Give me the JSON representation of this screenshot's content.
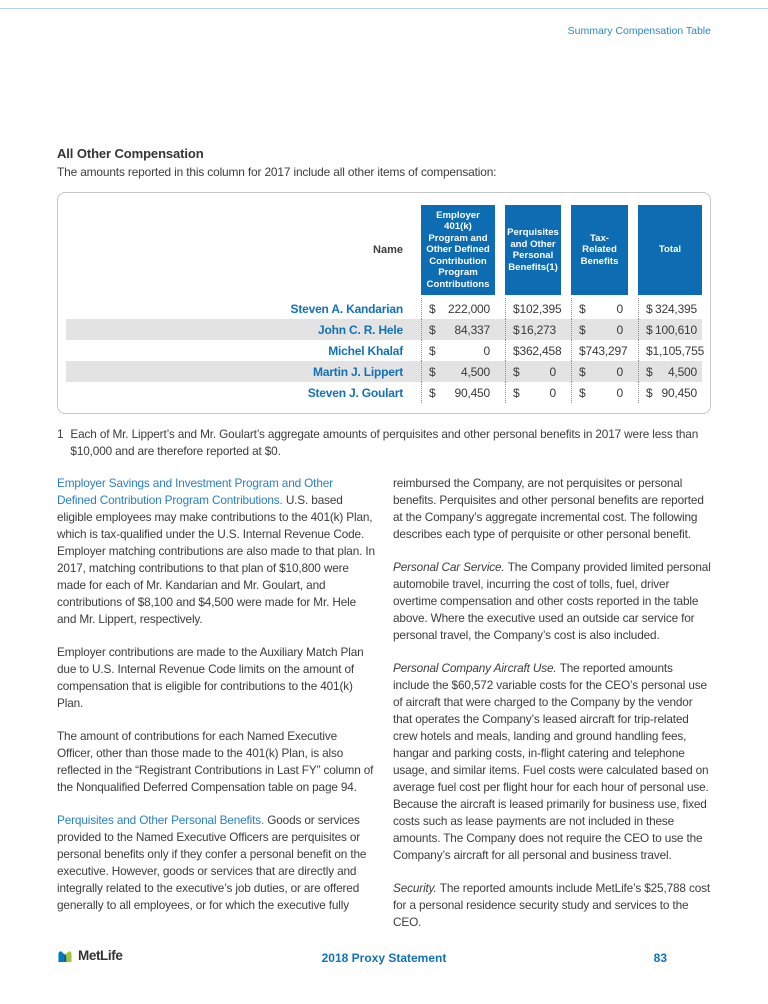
{
  "page": {
    "header_label": "Summary Compensation Table",
    "section_title": "All Other Compensation",
    "intro": "The amounts reported in this column for 2017 include all other items of compensation:"
  },
  "table": {
    "name_header": "Name",
    "columns": [
      "Employer 401(k) Program and Other Defined Contribution Program Contributions",
      "Perquisites and Other Personal Benefits(1)",
      "Tax-Related Benefits",
      "Total"
    ],
    "currency_symbol": "$",
    "rows": [
      {
        "name": "Steven A. Kandarian",
        "values": [
          "222,000",
          "102,395",
          "0",
          "324,395"
        ]
      },
      {
        "name": "John C. R. Hele",
        "values": [
          "84,337",
          "16,273",
          "0",
          "100,610"
        ]
      },
      {
        "name": "Michel Khalaf",
        "values": [
          "0",
          "362,458",
          "743,297",
          "1,105,755"
        ]
      },
      {
        "name": "Martin J. Lippert",
        "values": [
          "4,500",
          "0",
          "0",
          "4,500"
        ]
      },
      {
        "name": "Steven J. Goulart",
        "values": [
          "90,450",
          "0",
          "0",
          "90,450"
        ]
      }
    ]
  },
  "footnote": {
    "number": "1",
    "text": "Each of Mr. Lippert’s and Mr. Goulart’s aggregate amounts of perquisites and other personal benefits in 2017 were less than $10,000 and are therefore reported at $0."
  },
  "body": {
    "left": [
      {
        "lead": "Employer Savings and Investment Program and Other Defined Contribution Program Contributions.",
        "lead_style": "blue",
        "text": "U.S. based eligible employees may make contributions to the 401(k) Plan, which is tax-qualified under the U.S. Internal Revenue Code. Employer matching contributions are also made to that plan. In 2017, matching contributions to that plan of $10,800 were made for each of Mr. Kandarian and Mr. Goulart, and contributions of $8,100 and $4,500 were made for Mr. Hele and Mr. Lippert, respectively."
      },
      {
        "lead": null,
        "lead_style": null,
        "text": "Employer contributions are made to the Auxiliary Match Plan due to U.S. Internal Revenue Code limits on the amount of compensation that is eligible for contributions to the 401(k) Plan."
      },
      {
        "lead": null,
        "lead_style": null,
        "text": "The amount of contributions for each Named Executive Officer, other than those made to the 401(k) Plan, is also reflected in the “Registrant Contributions in Last FY” column of the Nonqualified Deferred Compensation table on page 94."
      },
      {
        "lead": "Perquisites and Other Personal Benefits.",
        "lead_style": "blue",
        "text": "Goods or services provided to the Named Executive Officers are perquisites or personal benefits only if they confer a personal benefit on the executive. However, goods or services that are directly and integrally related to the executive’s job duties, or are offered generally to all employees, or for which the executive fully"
      }
    ],
    "right": [
      {
        "lead": null,
        "lead_style": null,
        "text": "reimbursed the Company, are not perquisites or personal benefits. Perquisites and other personal benefits are reported at the Company’s aggregate incremental cost. The following describes each type of perquisite or other personal benefit."
      },
      {
        "lead": "Personal Car Service.",
        "lead_style": "italic",
        "text": "The Company provided limited personal automobile travel, incurring the cost of tolls, fuel, driver overtime compensation and other costs reported in the table above. Where the executive used an outside car service for personal travel, the Company’s cost is also included."
      },
      {
        "lead": "Personal Company Aircraft Use.",
        "lead_style": "italic",
        "text": "The reported amounts include the $60,572 variable costs for the CEO’s personal use of aircraft that were charged to the Company by the vendor that operates the Company’s leased aircraft for trip-related crew hotels and meals, landing and ground handling fees, hangar and parking costs, in-flight catering and telephone usage, and similar items. Fuel costs were calculated based on average fuel cost per flight hour for each hour of personal use. Because the aircraft is leased primarily for business use, fixed costs such as lease payments are not included in these amounts. The Company does not require the CEO to use the Company’s aircraft for all personal and business travel."
      },
      {
        "lead": "Security.",
        "lead_style": "italic",
        "text": "The reported amounts include MetLife’s $25,788 cost for a personal residence security study and services to the CEO."
      }
    ]
  },
  "footer": {
    "brand": "MetLife",
    "center": "2018 Proxy Statement",
    "page_number": "83"
  },
  "colors": {
    "header_box_blue": "#0d6cb2",
    "name_blue": "#1272b8",
    "lead_blue": "#2a80c2",
    "row_shade": "#e3e3e3",
    "top_rule_blue": "#b5d3ec",
    "logo_blue": "#0079c2",
    "logo_green": "#9ec73d",
    "logo_overlap": "#0f5e96"
  }
}
